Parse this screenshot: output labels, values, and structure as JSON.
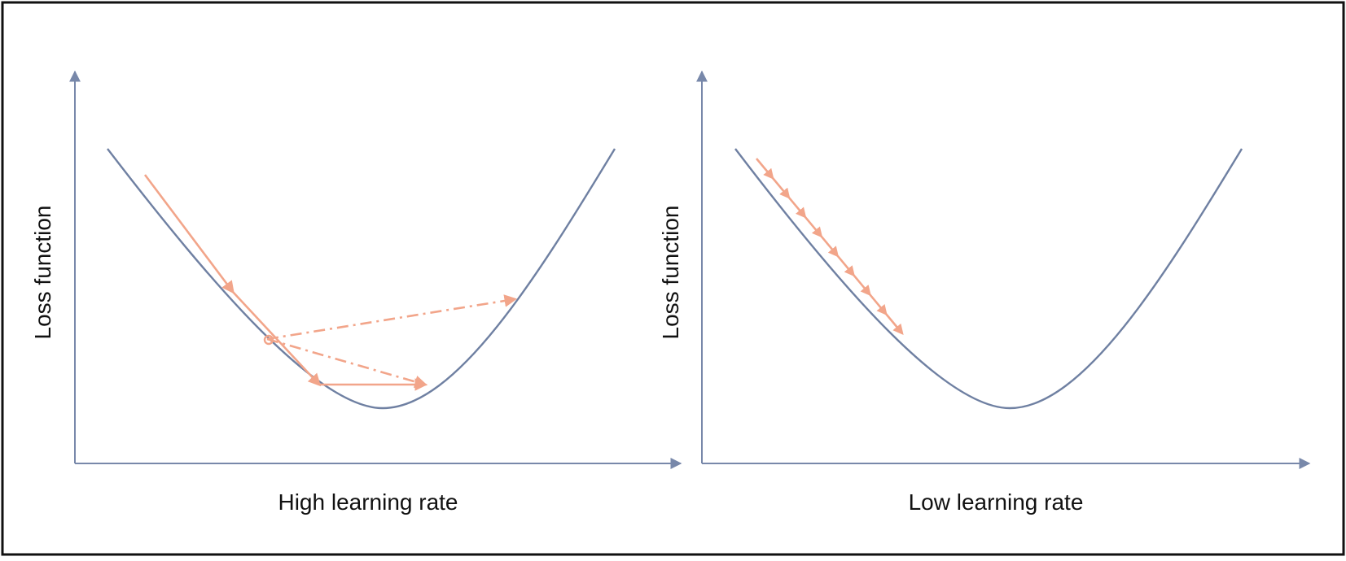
{
  "colors": {
    "axis": "#7888aa",
    "curve": "#6f80a2",
    "steps": "#f2a58a",
    "frame": "#111111"
  },
  "panels": [
    {
      "name": "high",
      "ylabel": "Loss function",
      "xlabel": "High learning rate",
      "steps_style": "solid-then-dash-dot",
      "step_count": 5
    },
    {
      "name": "low",
      "ylabel": "Loss function",
      "xlabel": "Low learning rate",
      "steps_style": "solid",
      "step_count": 9
    }
  ]
}
